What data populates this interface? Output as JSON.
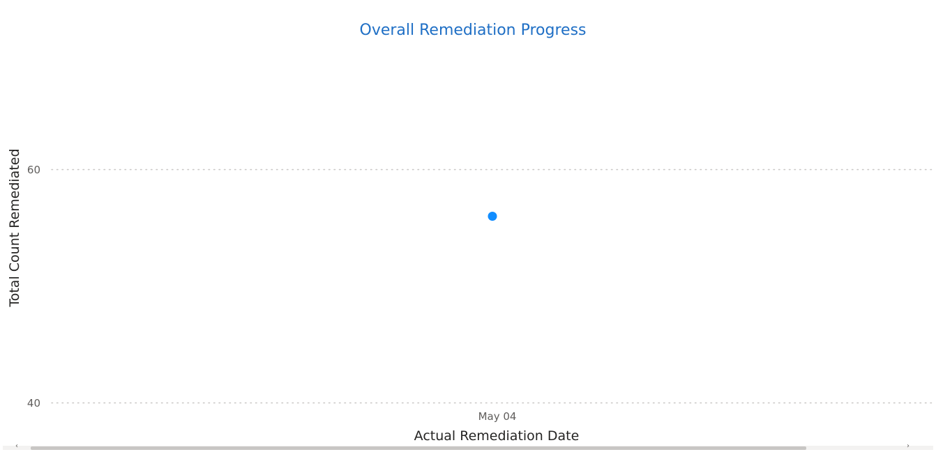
{
  "chart_data": {
    "type": "scatter",
    "title": "Overall Remediation Progress",
    "xlabel": "Actual Remediation Date",
    "ylabel": "Total Count Remediated",
    "x_categories": [
      "May 04"
    ],
    "series": [
      {
        "points": [
          {
            "x": "May 04",
            "y": 56
          }
        ]
      }
    ],
    "y_ticks": [
      60,
      40
    ],
    "ylim": [
      40,
      60
    ],
    "grid": true,
    "point_color": "#118dff",
    "title_color": "#1f6fc5"
  },
  "scrollbar": {
    "left_arrow": "‹",
    "right_arrow": "›"
  }
}
